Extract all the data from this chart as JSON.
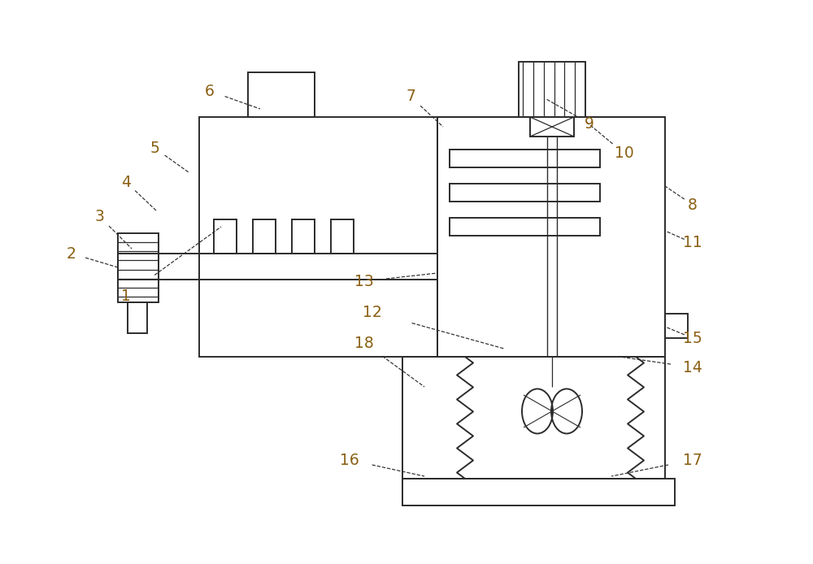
{
  "bg": "#ffffff",
  "lc": "#2c2c2c",
  "label_color": "#8B6014",
  "lw": 1.4,
  "labels": [
    [
      "1",
      1.55,
      3.3,
      2.72,
      4.15
    ],
    [
      "2",
      0.88,
      3.82,
      1.45,
      3.65
    ],
    [
      "3",
      1.22,
      4.28,
      1.62,
      3.88
    ],
    [
      "4",
      1.55,
      4.7,
      1.92,
      4.35
    ],
    [
      "5",
      1.9,
      5.12,
      2.32,
      4.82
    ],
    [
      "6",
      2.58,
      5.82,
      3.2,
      5.6
    ],
    [
      "7",
      5.05,
      5.75,
      5.45,
      5.38
    ],
    [
      "8",
      8.52,
      4.42,
      8.18,
      4.65
    ],
    [
      "9",
      7.25,
      5.42,
      6.72,
      5.72
    ],
    [
      "10",
      7.68,
      5.05,
      7.2,
      5.45
    ],
    [
      "11",
      8.52,
      3.95,
      8.18,
      4.1
    ],
    [
      "12",
      4.58,
      3.1,
      6.2,
      2.65
    ],
    [
      "13",
      4.48,
      3.48,
      5.38,
      3.58
    ],
    [
      "14",
      8.52,
      2.42,
      7.62,
      2.55
    ],
    [
      "15",
      8.52,
      2.78,
      8.18,
      2.92
    ],
    [
      "16",
      4.3,
      1.28,
      5.22,
      1.08
    ],
    [
      "17",
      8.52,
      1.28,
      7.52,
      1.08
    ],
    [
      "18",
      4.48,
      2.72,
      5.22,
      2.18
    ]
  ]
}
